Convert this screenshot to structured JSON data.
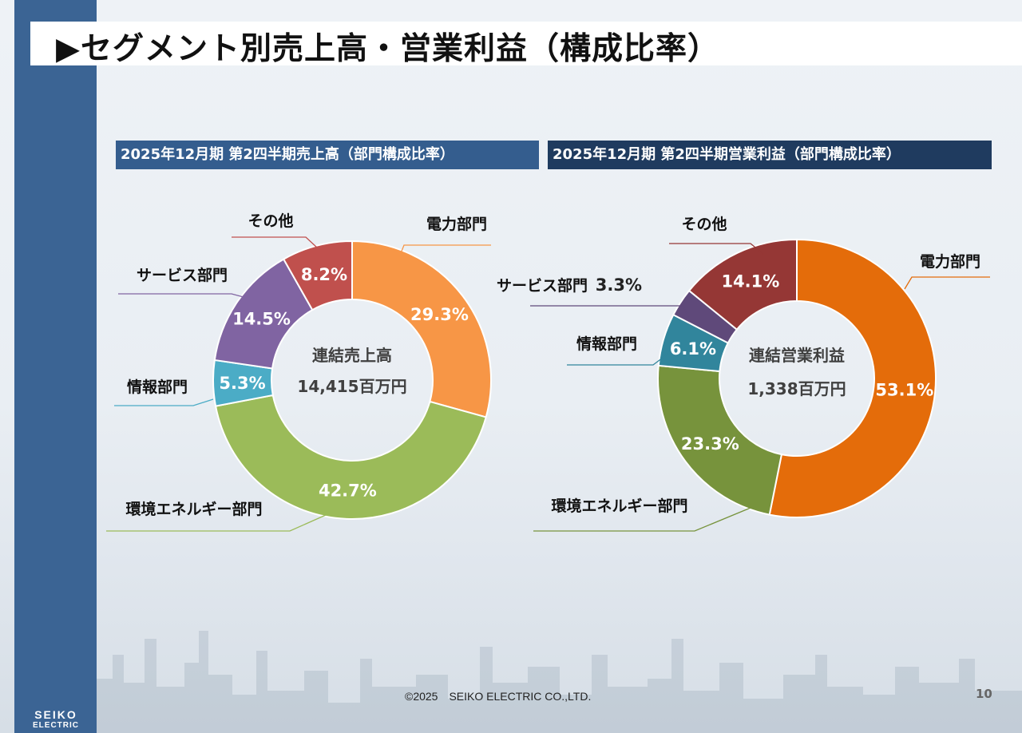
{
  "page": {
    "title": "▶セグメント別売上高・営業利益（構成比率）",
    "footer": "©2025　SEIKO ELECTRIC CO.,LTD.",
    "page_number": "10",
    "logo_line1": "SEIKO",
    "logo_line2": "ELECTRIC"
  },
  "colors": {
    "sidebar": "#3b6494",
    "header_sales": "#345d8e",
    "header_profit": "#1f3b5f"
  },
  "chart_data": [
    {
      "type": "pie",
      "title": "2025年12月期 第2四半期売上高（部門構成比率）",
      "center_label": "連結売上高",
      "center_value": "14,415百万円",
      "categories": [
        "電力部門",
        "環境エネルギー部門",
        "情報部門",
        "サービス部門",
        "その他"
      ],
      "values": [
        29.3,
        42.7,
        5.3,
        14.5,
        8.2
      ],
      "value_labels": [
        "29.3%",
        "42.7%",
        "5.3%",
        "14.5%",
        "8.2%"
      ],
      "colors": [
        "#f79646",
        "#9bbb59",
        "#4bacc6",
        "#8064a2",
        "#c0504d"
      ],
      "donut": true
    },
    {
      "type": "pie",
      "title": "2025年12月期 第2四半期営業利益（部門構成比率）",
      "center_label": "連結営業利益",
      "center_value": "1,338百万円",
      "categories": [
        "電力部門",
        "環境エネルギー部門",
        "情報部門",
        "サービス部門",
        "その他"
      ],
      "values": [
        53.1,
        23.3,
        6.1,
        3.3,
        14.1
      ],
      "value_labels": [
        "53.1%",
        "23.3%",
        "6.1%",
        "3.3%",
        "14.1%"
      ],
      "colors": [
        "#e46c0a",
        "#77933c",
        "#31859c",
        "#5f497a",
        "#953735"
      ],
      "donut": true
    }
  ]
}
